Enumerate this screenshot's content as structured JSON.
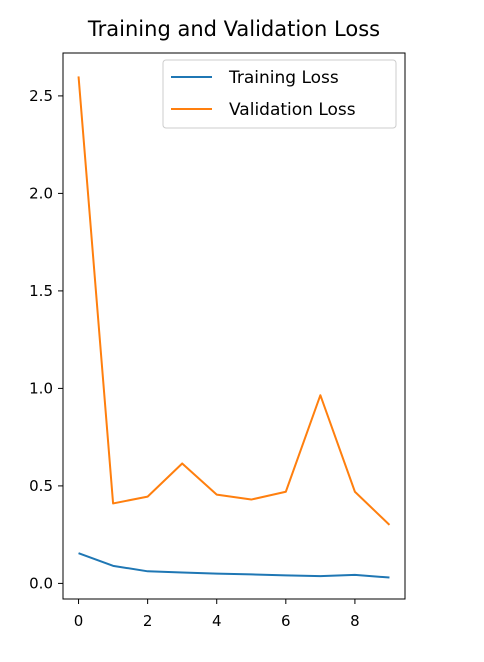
{
  "chart_data": {
    "type": "line",
    "title": "Training and Validation Loss",
    "xlabel": "",
    "ylabel": "",
    "x": [
      0,
      1,
      2,
      3,
      4,
      5,
      6,
      7,
      8,
      9
    ],
    "xlim": [
      -0.45,
      9.45
    ],
    "ylim": [
      -0.08,
      2.72
    ],
    "xticks": [
      0,
      2,
      4,
      6,
      8
    ],
    "xtick_labels": [
      "0",
      "2",
      "4",
      "6",
      "8"
    ],
    "yticks": [
      0.0,
      0.5,
      1.0,
      1.5,
      2.0,
      2.5
    ],
    "ytick_labels": [
      "0.0",
      "0.5",
      "1.0",
      "1.5",
      "2.0",
      "2.5"
    ],
    "grid": false,
    "legend_position": "upper right",
    "series": [
      {
        "name": "Training Loss",
        "color": "#1f77b4",
        "values": [
          0.155,
          0.09,
          0.062,
          0.056,
          0.05,
          0.046,
          0.041,
          0.037,
          0.044,
          0.03
        ]
      },
      {
        "name": "Validation Loss",
        "color": "#ff7f0e",
        "values": [
          2.6,
          0.41,
          0.445,
          0.615,
          0.455,
          0.43,
          0.47,
          0.965,
          0.47,
          0.3
        ]
      }
    ]
  }
}
